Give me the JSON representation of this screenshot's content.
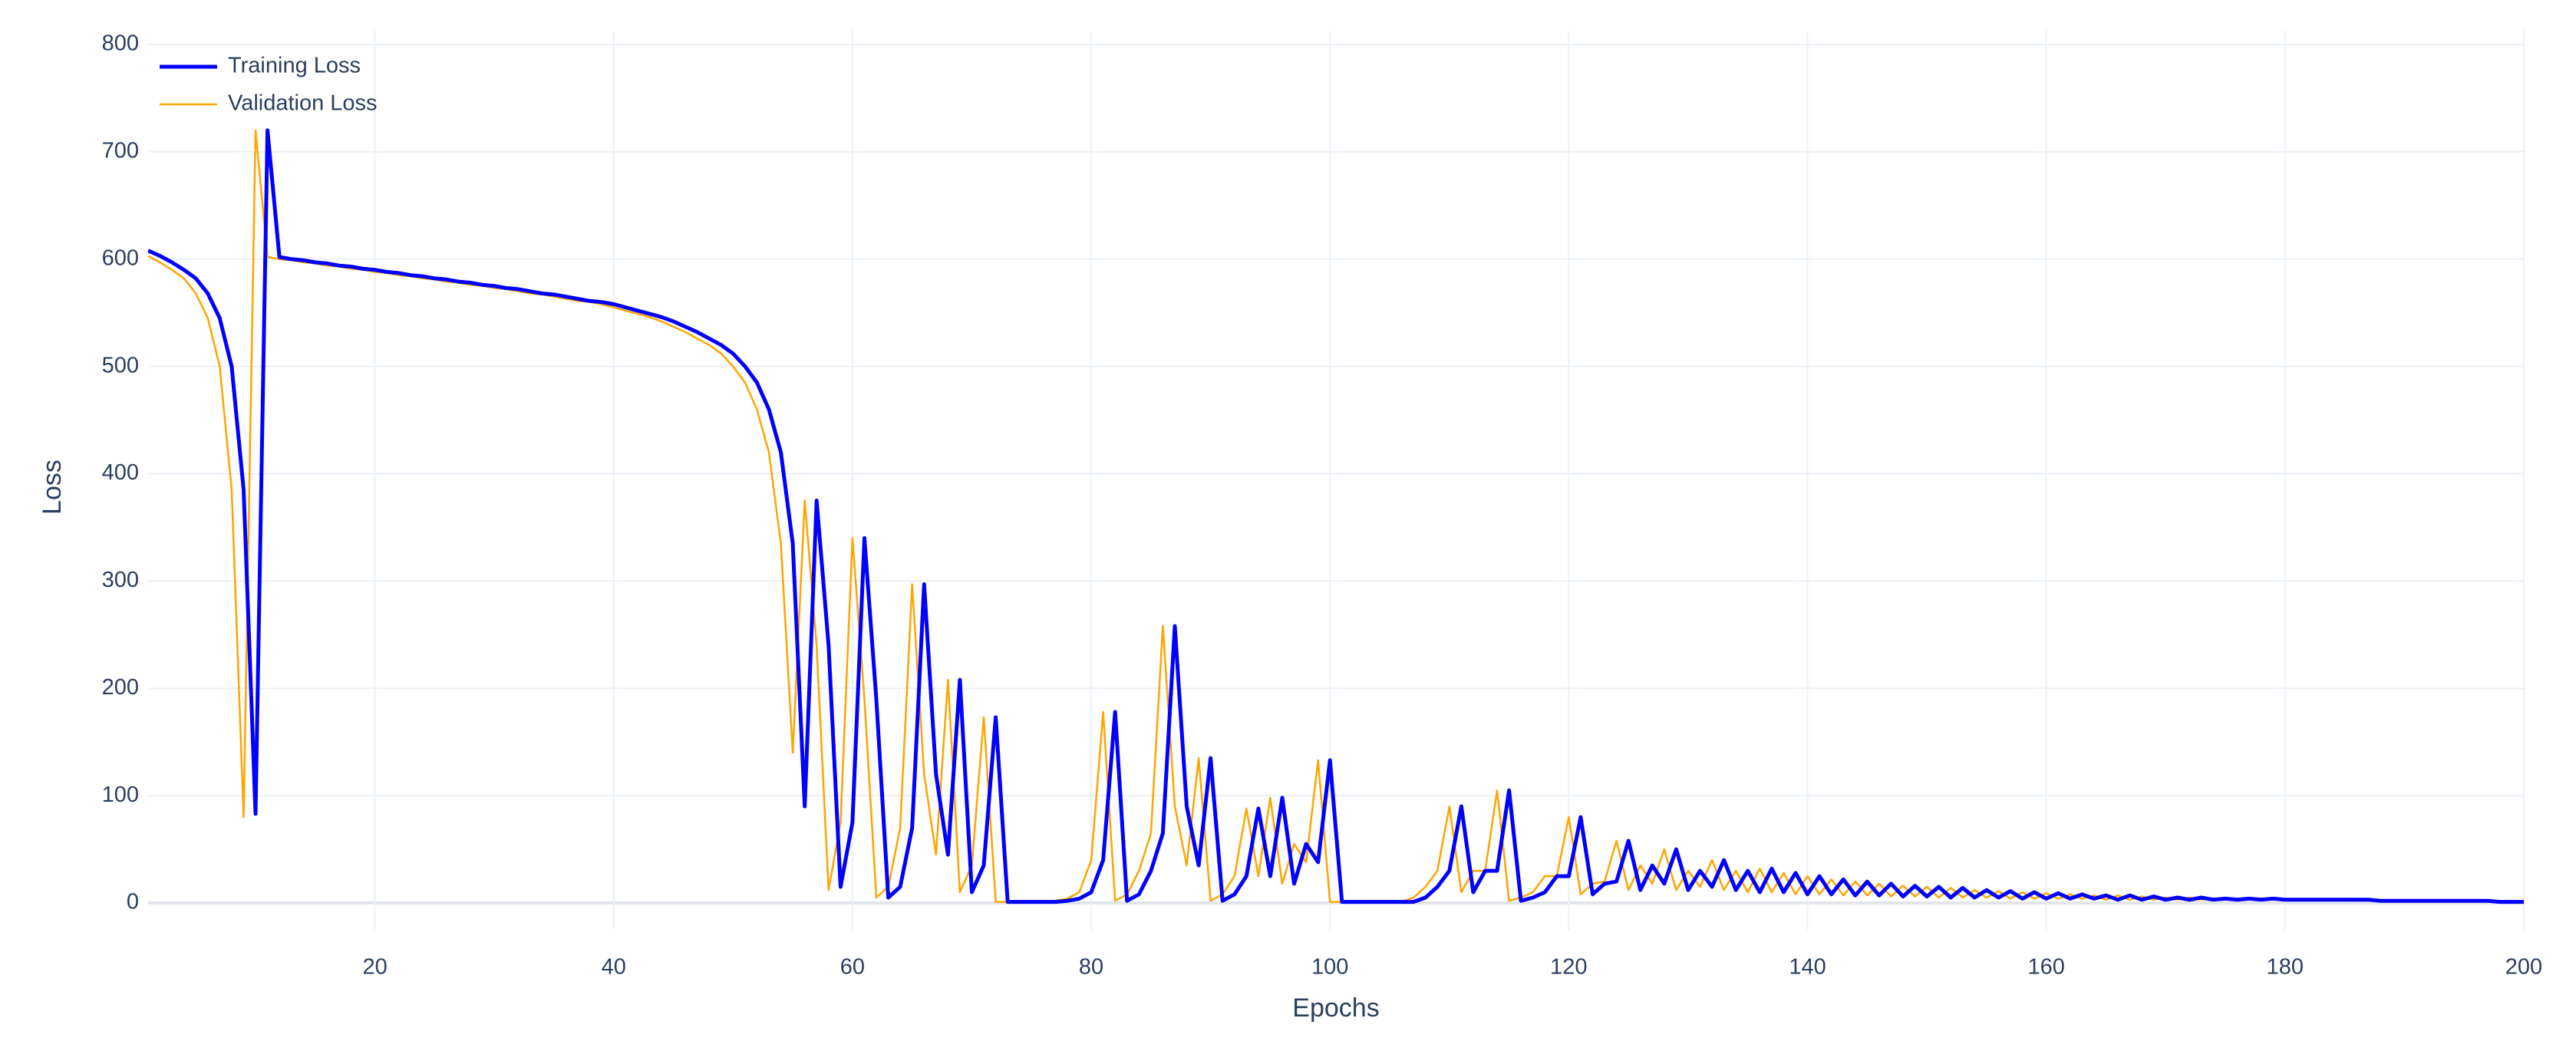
{
  "chart_data": {
    "type": "line",
    "x_label": "Epochs",
    "y_label": "Loss",
    "x": [
      1,
      2,
      3,
      4,
      5,
      6,
      7,
      8,
      9,
      10,
      11,
      12,
      13,
      14,
      15,
      16,
      17,
      18,
      19,
      20,
      21,
      22,
      23,
      24,
      25,
      26,
      27,
      28,
      29,
      30,
      31,
      32,
      33,
      34,
      35,
      36,
      37,
      38,
      39,
      40,
      41,
      42,
      43,
      44,
      45,
      46,
      47,
      48,
      49,
      50,
      51,
      52,
      53,
      54,
      55,
      56,
      57,
      58,
      59,
      60,
      61,
      62,
      63,
      64,
      65,
      66,
      67,
      68,
      69,
      70,
      71,
      72,
      73,
      74,
      75,
      76,
      77,
      78,
      79,
      80,
      81,
      82,
      83,
      84,
      85,
      86,
      87,
      88,
      89,
      90,
      91,
      92,
      93,
      94,
      95,
      96,
      97,
      98,
      99,
      100,
      101,
      102,
      103,
      104,
      105,
      106,
      107,
      108,
      109,
      110,
      111,
      112,
      113,
      114,
      115,
      116,
      117,
      118,
      119,
      120,
      121,
      122,
      123,
      124,
      125,
      126,
      127,
      128,
      129,
      130,
      131,
      132,
      133,
      134,
      135,
      136,
      137,
      138,
      139,
      140,
      141,
      142,
      143,
      144,
      145,
      146,
      147,
      148,
      149,
      150,
      151,
      152,
      153,
      154,
      155,
      156,
      157,
      158,
      159,
      160,
      161,
      162,
      163,
      164,
      165,
      166,
      167,
      168,
      169,
      170,
      171,
      172,
      173,
      174,
      175,
      176,
      177,
      178,
      179,
      180,
      181,
      182,
      183,
      184,
      185,
      186,
      187,
      188,
      189,
      190,
      191,
      192,
      193,
      194,
      195,
      196,
      197,
      198,
      199,
      200
    ],
    "series": [
      {
        "name": "Training Loss",
        "color": "#0000ff",
        "values": [
          608,
          603,
          597,
          590,
          582,
          568,
          545,
          500,
          385,
          83,
          720,
          602,
          600,
          599,
          597,
          596,
          594,
          593,
          591,
          590,
          588,
          587,
          585,
          584,
          582,
          581,
          579,
          578,
          576,
          575,
          573,
          572,
          570,
          568,
          567,
          565,
          563,
          561,
          560,
          558,
          555,
          552,
          549,
          546,
          542,
          537,
          532,
          526,
          520,
          512,
          500,
          485,
          460,
          420,
          335,
          90,
          375,
          240,
          15,
          75,
          340,
          190,
          5,
          15,
          70,
          297,
          120,
          45,
          208,
          10,
          35,
          173,
          1,
          1,
          1,
          1,
          1,
          2,
          4,
          10,
          40,
          178,
          2,
          8,
          30,
          65,
          258,
          90,
          35,
          135,
          2,
          8,
          25,
          88,
          25,
          98,
          18,
          55,
          38,
          133,
          1,
          1,
          1,
          1,
          1,
          1,
          1,
          5,
          15,
          30,
          90,
          10,
          30,
          30,
          105,
          2,
          5,
          10,
          25,
          25,
          80,
          8,
          18,
          20,
          58,
          12,
          35,
          18,
          50,
          12,
          30,
          15,
          40,
          12,
          30,
          10,
          32,
          10,
          28,
          8,
          25,
          8,
          22,
          7,
          20,
          7,
          18,
          6,
          16,
          6,
          15,
          5,
          14,
          5,
          12,
          5,
          11,
          4,
          10,
          4,
          9,
          4,
          8,
          4,
          7,
          3,
          7,
          3,
          6,
          3,
          5,
          3,
          5,
          3,
          4,
          3,
          4,
          3,
          4,
          3,
          3,
          3,
          3,
          3,
          3,
          3,
          3,
          2,
          2,
          2,
          2,
          2,
          2,
          2,
          2,
          2,
          2,
          1,
          1,
          1
        ]
      },
      {
        "name": "Validation Loss",
        "color": "#ffa500",
        "values": [
          603,
          597,
          590,
          582,
          568,
          545,
          500,
          385,
          80,
          720,
          602,
          600,
          599,
          597,
          596,
          594,
          593,
          591,
          590,
          588,
          587,
          585,
          584,
          582,
          581,
          579,
          578,
          576,
          575,
          573,
          572,
          570,
          568,
          567,
          565,
          563,
          561,
          560,
          558,
          555,
          552,
          549,
          546,
          542,
          537,
          532,
          526,
          520,
          512,
          500,
          485,
          460,
          420,
          335,
          140,
          375,
          240,
          12,
          75,
          340,
          190,
          5,
          15,
          70,
          297,
          120,
          45,
          208,
          10,
          35,
          173,
          1,
          1,
          1,
          1,
          1,
          2,
          4,
          10,
          40,
          178,
          2,
          8,
          30,
          65,
          258,
          90,
          35,
          135,
          2,
          8,
          25,
          88,
          25,
          98,
          18,
          55,
          38,
          133,
          1,
          1,
          1,
          1,
          1,
          1,
          1,
          5,
          15,
          30,
          90,
          10,
          30,
          30,
          105,
          2,
          5,
          10,
          25,
          25,
          80,
          8,
          18,
          20,
          58,
          12,
          35,
          18,
          50,
          12,
          30,
          15,
          40,
          12,
          30,
          10,
          32,
          10,
          28,
          8,
          25,
          8,
          22,
          7,
          20,
          7,
          18,
          6,
          16,
          6,
          15,
          5,
          14,
          5,
          12,
          5,
          11,
          4,
          10,
          4,
          9,
          4,
          8,
          4,
          7,
          3,
          7,
          3,
          6,
          3,
          5,
          3,
          5,
          3,
          4,
          3,
          4,
          3,
          4,
          3,
          3,
          3,
          3,
          3,
          3,
          3,
          3,
          2,
          2,
          2,
          2,
          2,
          2,
          2,
          2,
          2,
          2,
          1,
          1,
          1,
          1
        ]
      }
    ],
    "xlim": [
      1,
      200
    ],
    "xticks": [
      20,
      40,
      60,
      80,
      100,
      120,
      140,
      160,
      180,
      200
    ],
    "ylim": [
      -25,
      800
    ],
    "yticks": [
      0,
      100,
      200,
      300,
      400,
      500,
      600,
      700,
      800
    ],
    "grid": true,
    "legend": "top-left"
  }
}
